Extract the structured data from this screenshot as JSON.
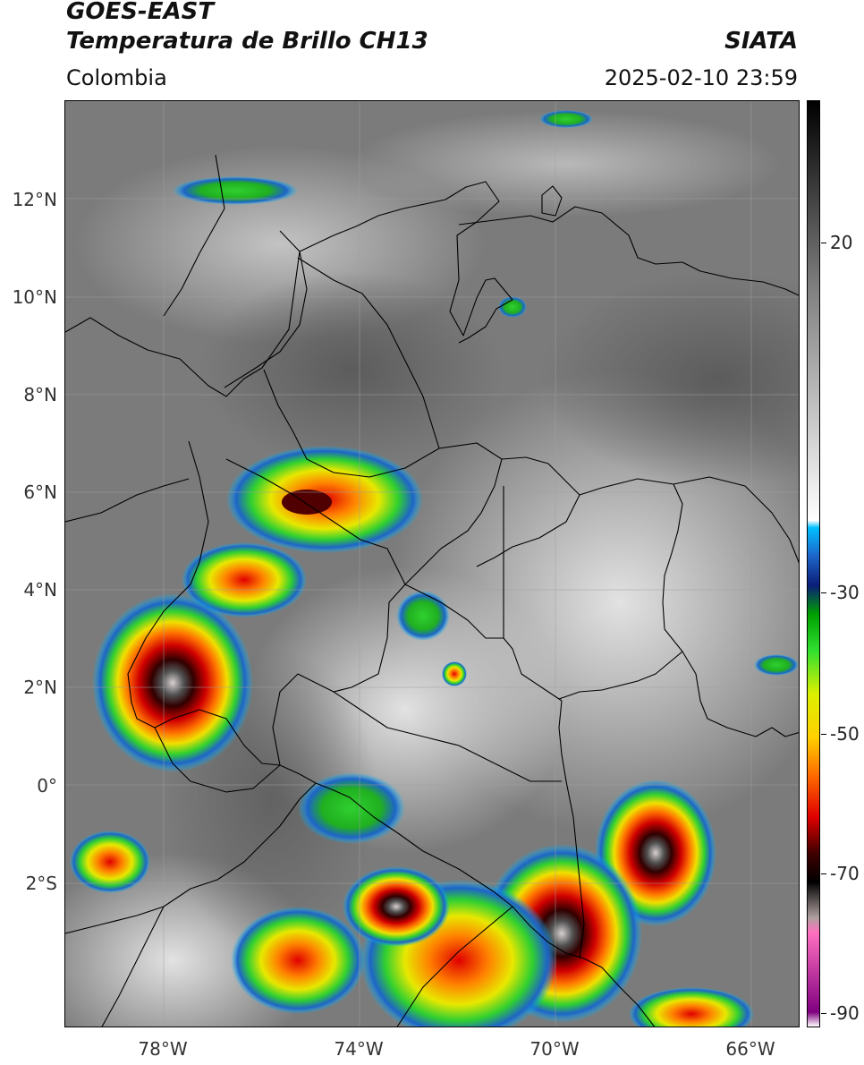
{
  "header": {
    "satellite": "GOES-EAST",
    "product": "Temperatura de Brillo CH13",
    "region": "Colombia",
    "agency": "SIATA",
    "datetime": "2025-02-10 23:59"
  },
  "map": {
    "lat_labels": [
      "12°N",
      "10°N",
      "8°N",
      "6°N",
      "4°N",
      "2°N",
      "0°",
      "2°S"
    ],
    "lon_labels": [
      "78°W",
      "74°W",
      "70°W",
      "66°W"
    ],
    "lat_range": [
      -5.0,
      14.0
    ],
    "lon_range": [
      -80.0,
      -65.0
    ],
    "grid": true
  },
  "colorbar": {
    "labels": [
      "20",
      "-30",
      "-50",
      "-70",
      "-90"
    ],
    "range": [
      -92,
      36
    ],
    "stops": [
      {
        "t": 36,
        "color": "#000000"
      },
      {
        "t": 10,
        "color": "#808080"
      },
      {
        "t": -22,
        "color": "#ffffff"
      },
      {
        "t": -23,
        "color": "#00bfff"
      },
      {
        "t": -27,
        "color": "#1e64c8"
      },
      {
        "t": -31,
        "color": "#0a1e78"
      },
      {
        "t": -35,
        "color": "#00a000"
      },
      {
        "t": -40,
        "color": "#30e030"
      },
      {
        "t": -46,
        "color": "#dcf000"
      },
      {
        "t": -52,
        "color": "#ffd000"
      },
      {
        "t": -57,
        "color": "#ff7000"
      },
      {
        "t": -63,
        "color": "#e00000"
      },
      {
        "t": -68,
        "color": "#400000"
      },
      {
        "t": -72,
        "color": "#000000"
      },
      {
        "t": -77,
        "color": "#b0a0a0"
      },
      {
        "t": -79,
        "color": "#ff70c0"
      },
      {
        "t": -90,
        "color": "#800080"
      },
      {
        "t": -92,
        "color": "#ffffff"
      }
    ]
  }
}
